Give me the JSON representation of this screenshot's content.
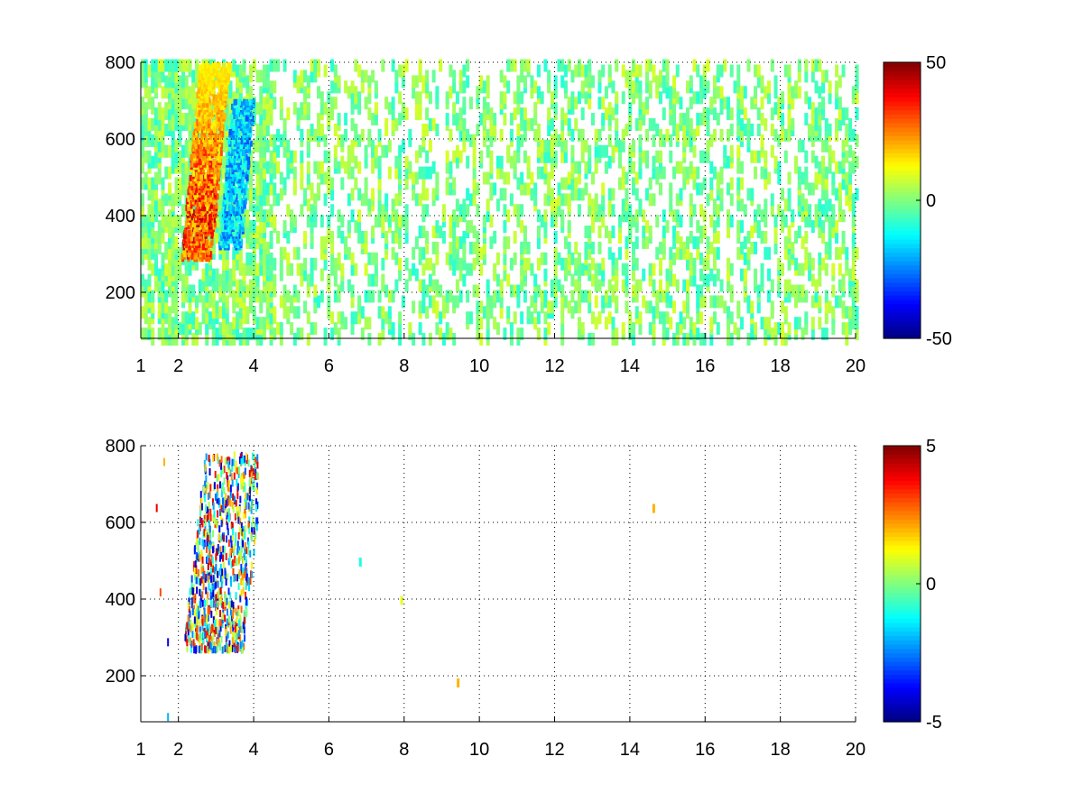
{
  "chart_data": [
    {
      "type": "heatmap",
      "title": "",
      "xlabel": "",
      "ylabel": "",
      "xlim": [
        1,
        20
      ],
      "ylim": [
        80,
        800
      ],
      "x_ticks": [
        1,
        2,
        4,
        6,
        8,
        10,
        12,
        14,
        16,
        18,
        20
      ],
      "y_ticks": [
        200,
        400,
        600,
        800
      ],
      "grid": true,
      "colormap": "jet",
      "colorbar": {
        "range": [
          -50,
          50
        ],
        "ticks": [
          50,
          0,
          -50
        ]
      },
      "features": [
        {
          "description_value": "positive band",
          "x_range": [
            2.2,
            3.3
          ],
          "y_range": [
            290,
            800
          ],
          "value": 35
        },
        {
          "description_value": "negative band",
          "x_range": [
            3.0,
            4.0
          ],
          "y_range": [
            320,
            700
          ],
          "value": -25
        },
        {
          "description_value": "scattered columns",
          "x_range": [
            1,
            20
          ],
          "y_range": [
            80,
            800
          ],
          "value": 0
        }
      ]
    },
    {
      "type": "heatmap",
      "title": "",
      "xlabel": "",
      "ylabel": "",
      "xlim": [
        1,
        20
      ],
      "ylim": [
        80,
        800
      ],
      "x_ticks": [
        1,
        2,
        4,
        6,
        8,
        10,
        12,
        14,
        16,
        18,
        20
      ],
      "y_ticks": [
        200,
        400,
        600,
        800
      ],
      "grid": true,
      "colormap": "jet",
      "colorbar": {
        "range": [
          -5,
          5
        ],
        "ticks": [
          5,
          0,
          -5
        ]
      },
      "features": [
        {
          "description_value": "central cluster",
          "x_range": [
            2.0,
            4.1
          ],
          "y_range": [
            270,
            780
          ],
          "value": 0
        },
        {
          "description_value": "isolated point",
          "x": 6.8,
          "y": 500,
          "value": -1
        },
        {
          "description_value": "isolated point",
          "x": 7.9,
          "y": 400,
          "value": 1
        },
        {
          "description_value": "isolated point",
          "x": 9.4,
          "y": 185,
          "value": 2
        },
        {
          "description_value": "isolated point",
          "x": 14.6,
          "y": 640,
          "value": 2
        }
      ]
    }
  ]
}
